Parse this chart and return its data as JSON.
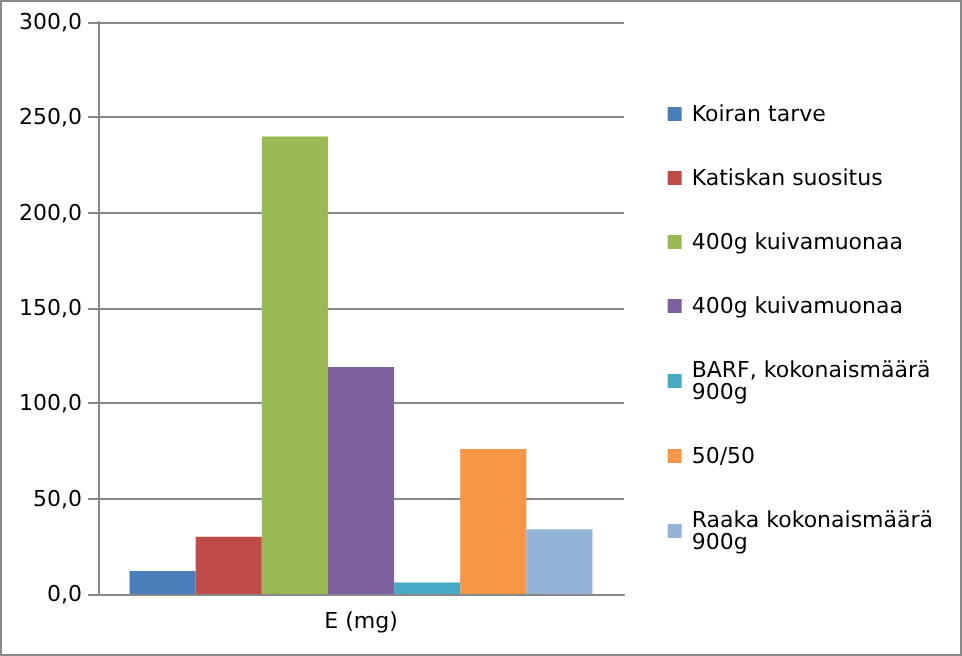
{
  "chart_data": {
    "type": "bar",
    "categories": [
      "E (mg)"
    ],
    "series": [
      {
        "name": "Koiran tarve",
        "color": "#4a7ebb",
        "values": [
          12
        ]
      },
      {
        "name": "Katiskan suositus",
        "color": "#be4b48",
        "values": [
          30
        ]
      },
      {
        "name": "400g kuivamuonaa",
        "color": "#98b954",
        "values": [
          240
        ]
      },
      {
        "name": "400g kuivamuonaa",
        "color": "#7d60a0",
        "values": [
          119
        ]
      },
      {
        "name": "BARF, kokonaismäärä 900g",
        "color": "#46aac5",
        "values": [
          6
        ]
      },
      {
        "name": "50/50",
        "color": "#f79646",
        "values": [
          76
        ]
      },
      {
        "name": "Raaka kokonaismäärä 900g",
        "color": "#95b3d7",
        "values": [
          34
        ]
      }
    ],
    "ylim": [
      0,
      300
    ],
    "yticks": [
      {
        "value": 0,
        "label": "0,0"
      },
      {
        "value": 50,
        "label": "50,0"
      },
      {
        "value": 100,
        "label": "100,0"
      },
      {
        "value": 150,
        "label": "150,0"
      },
      {
        "value": 200,
        "label": "200,0"
      },
      {
        "value": 250,
        "label": "250,0"
      },
      {
        "value": 300,
        "label": "300,0"
      }
    ],
    "grid": "y",
    "legend": "right"
  }
}
